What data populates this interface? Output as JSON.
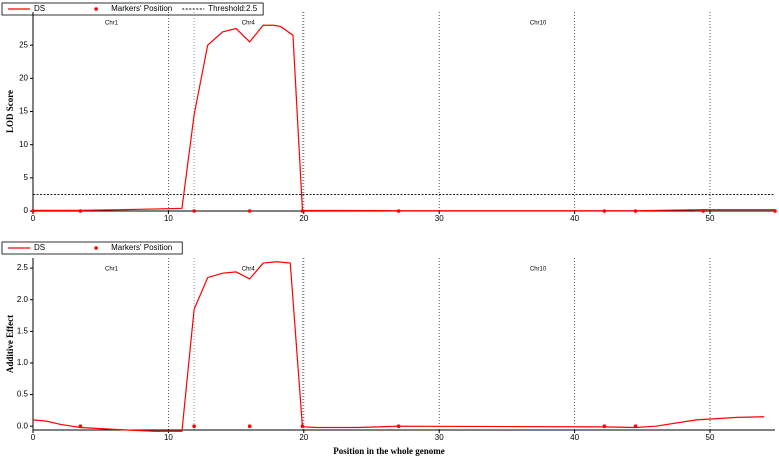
{
  "chart_data": [
    {
      "type": "line",
      "ylabel": "LOD Score",
      "xlim": [
        0,
        54.8
      ],
      "xticks": [
        0,
        10,
        20,
        30,
        40,
        50
      ],
      "ylim": [
        0,
        30
      ],
      "yticks": [
        0,
        5,
        10,
        15,
        20,
        25
      ],
      "grid": true,
      "boundaries": [
        11.9,
        19.9
      ],
      "annotations": [
        {
          "text": "Chr1",
          "x": 5.8
        },
        {
          "text": "Chr4",
          "x": 15.9
        },
        {
          "text": "Chr10",
          "x": 37.3
        }
      ],
      "threshold": {
        "label": "Threshold:2.5",
        "value": 2.5
      },
      "series": [
        {
          "name": "DS",
          "type": "line",
          "color": "#ff0000",
          "x": [
            0,
            3.5,
            6.5,
            10,
            11,
            11.9,
            12.9,
            14,
            15,
            16,
            17,
            17.8,
            18.3,
            19.2,
            19.9,
            27,
            42.2,
            44.5,
            49.5,
            54.8
          ],
          "values": [
            0.1,
            0.1,
            0.2,
            0.35,
            0.4,
            14.5,
            25,
            27,
            27.5,
            25.5,
            28,
            28,
            27.8,
            26.5,
            0.1,
            0.05,
            0.05,
            0.05,
            0.2,
            0.2
          ]
        },
        {
          "name": "Markers' Position",
          "type": "scatter",
          "color": "#ff0000",
          "x": [
            0,
            3.5,
            11.9,
            16,
            19.9,
            27,
            42.2,
            44.5,
            49.5,
            54.8
          ],
          "values": [
            0,
            0,
            0,
            0,
            0,
            0,
            0,
            0,
            0,
            0
          ]
        }
      ]
    },
    {
      "type": "line",
      "ylabel": "Additive Effect",
      "xlabel": "Position in the whole genome",
      "xlim": [
        0,
        54.8
      ],
      "xticks": [
        0,
        10,
        20,
        30,
        40,
        50
      ],
      "ylim": [
        -0.06,
        2.66
      ],
      "yticks": [
        {
          "value": 0,
          "label": "0.0"
        },
        0.5,
        {
          "value": 1,
          "label": "1.0"
        },
        1.5,
        {
          "value": 2,
          "label": "2.0"
        },
        2.5
      ],
      "grid": true,
      "boundaries": [
        11.9,
        19.9
      ],
      "annotations": [
        {
          "text": "Chr1",
          "x": 5.8
        },
        {
          "text": "Chr4",
          "x": 15.9
        },
        {
          "text": "Chr10",
          "x": 37.3
        }
      ],
      "series": [
        {
          "name": "DS",
          "type": "line",
          "color": "#ff0000",
          "x": [
            0,
            1,
            2,
            3.5,
            6,
            9,
            11,
            11.9,
            12.9,
            14,
            15,
            16,
            17,
            18,
            19,
            19.9,
            21,
            24,
            27,
            42.2,
            44.5,
            46,
            49,
            52,
            54
          ],
          "values": [
            0.1,
            0.08,
            0.03,
            -0.02,
            -0.05,
            -0.08,
            -0.08,
            1.85,
            2.35,
            2.42,
            2.44,
            2.33,
            2.58,
            2.6,
            2.58,
            -0.01,
            -0.02,
            -0.02,
            0,
            -0.01,
            -0.02,
            0,
            0.1,
            0.14,
            0.15
          ]
        },
        {
          "name": "Markers' Position",
          "type": "scatter",
          "color": "#ff0000",
          "x": [
            3.5,
            11.9,
            16,
            19.9,
            27,
            42.2,
            44.5
          ],
          "values": [
            0,
            0,
            0,
            0,
            0,
            0,
            0
          ]
        }
      ]
    }
  ]
}
